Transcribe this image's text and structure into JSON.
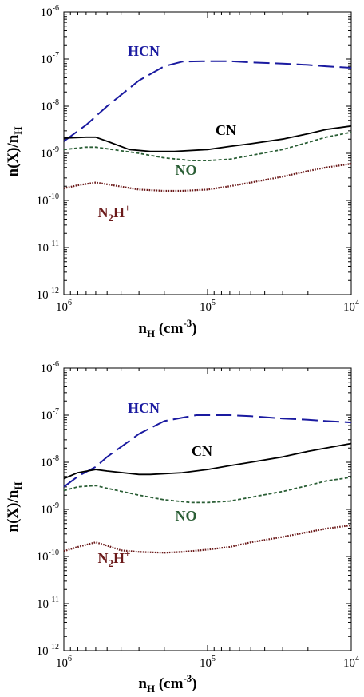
{
  "chart_data": [
    {
      "type": "line",
      "x_scale": "log",
      "y_scale": "log",
      "x_ticks": [
        {
          "value": 1000000,
          "base": "10",
          "exp": "6"
        },
        {
          "value": 100000,
          "base": "10",
          "exp": "5"
        },
        {
          "value": 10000,
          "base": "10",
          "exp": "4"
        }
      ],
      "y_ticks": [
        {
          "value": 1e-06,
          "base": "10",
          "exp": "-6"
        },
        {
          "value": 1e-07,
          "base": "10",
          "exp": "-7"
        },
        {
          "value": 1e-08,
          "base": "10",
          "exp": "-8"
        },
        {
          "value": 1e-09,
          "base": "10",
          "exp": "-9"
        },
        {
          "value": 1e-10,
          "base": "10",
          "exp": "-10"
        },
        {
          "value": 1e-11,
          "base": "10",
          "exp": "-11"
        },
        {
          "value": 1e-12,
          "base": "10",
          "exp": "-12"
        }
      ],
      "xlim": [
        1000000,
        10000
      ],
      "ylim": [
        1e-12,
        1e-06
      ],
      "xlabel": {
        "main": "n",
        "sub": "H",
        "tail": " (cm",
        "sup": "-3",
        "close": ")"
      },
      "ylabel": {
        "main": "n(X)/n",
        "sub": "H"
      },
      "series": [
        {
          "name": "HCN",
          "color": "#1a1aa0",
          "dash": "long-dash",
          "label_parts": {
            "main": "HCN"
          },
          "x": [
            1000000,
            700000,
            500000,
            300000,
            200000,
            150000,
            100000,
            70000,
            50000,
            30000,
            20000,
            15000,
            10000
          ],
          "y": [
            1.8e-09,
            4e-09,
            1e-08,
            3.5e-08,
            7e-08,
            8.8e-08,
            9e-08,
            9e-08,
            8.5e-08,
            8e-08,
            7.5e-08,
            7e-08,
            6.5e-08
          ]
        },
        {
          "name": "CN",
          "color": "#000000",
          "dash": "solid",
          "label_parts": {
            "main": "CN"
          },
          "x": [
            1000000,
            700000,
            600000,
            500000,
            350000,
            250000,
            170000,
            100000,
            70000,
            50000,
            30000,
            20000,
            15000,
            10000
          ],
          "y": [
            2.1e-09,
            2.2e-09,
            2.2e-09,
            1.8e-09,
            1.2e-09,
            1.1e-09,
            1.1e-09,
            1.2e-09,
            1.4e-09,
            1.6e-09,
            2e-09,
            2.6e-09,
            3.2e-09,
            3.8e-09
          ]
        },
        {
          "name": "NO",
          "color": "#2a5e35",
          "dash": "short-dash",
          "label_parts": {
            "main": "NO"
          },
          "x": [
            1000000,
            700000,
            600000,
            500000,
            300000,
            200000,
            130000,
            100000,
            70000,
            50000,
            30000,
            20000,
            15000,
            10000
          ],
          "y": [
            1.2e-09,
            1.35e-09,
            1.35e-09,
            1.25e-09,
            1e-09,
            8e-10,
            7e-10,
            7e-10,
            7.5e-10,
            9e-10,
            1.2e-09,
            1.7e-09,
            2.2e-09,
            2.8e-09
          ]
        },
        {
          "name": "N2H+",
          "color": "#6b1a1a",
          "dash": "dotted",
          "label_parts": {
            "main": "N",
            "sub": "2",
            "main2": "H",
            "sup": "+"
          },
          "x": [
            1000000,
            800000,
            600000,
            500000,
            300000,
            200000,
            150000,
            100000,
            70000,
            50000,
            30000,
            20000,
            15000,
            10000
          ],
          "y": [
            1.8e-10,
            2.1e-10,
            2.4e-10,
            2.2e-10,
            1.7e-10,
            1.6e-10,
            1.6e-10,
            1.7e-10,
            2e-10,
            2.4e-10,
            3.2e-10,
            4.2e-10,
            5e-10,
            6e-10
          ]
        }
      ]
    },
    {
      "type": "line",
      "x_scale": "log",
      "y_scale": "log",
      "x_ticks": [
        {
          "value": 1000000,
          "base": "10",
          "exp": "6"
        },
        {
          "value": 100000,
          "base": "10",
          "exp": "5"
        },
        {
          "value": 10000,
          "base": "10",
          "exp": "4"
        }
      ],
      "y_ticks": [
        {
          "value": 1e-06,
          "base": "10",
          "exp": "-6"
        },
        {
          "value": 1e-07,
          "base": "10",
          "exp": "-7"
        },
        {
          "value": 1e-08,
          "base": "10",
          "exp": "-8"
        },
        {
          "value": 1e-09,
          "base": "10",
          "exp": "-9"
        },
        {
          "value": 1e-10,
          "base": "10",
          "exp": "-10"
        },
        {
          "value": 1e-11,
          "base": "10",
          "exp": "-11"
        },
        {
          "value": 1e-12,
          "base": "10",
          "exp": "-12"
        }
      ],
      "xlim": [
        1000000,
        10000
      ],
      "ylim": [
        1e-12,
        1e-06
      ],
      "xlabel": {
        "main": "n",
        "sub": "H",
        "tail": " (cm",
        "sup": "-3",
        "close": ")"
      },
      "ylabel": {
        "main": "n(X)/n",
        "sub": "H"
      },
      "series": [
        {
          "name": "HCN",
          "color": "#1a1aa0",
          "dash": "long-dash",
          "label_parts": {
            "main": "HCN"
          },
          "x": [
            1000000,
            800000,
            600000,
            500000,
            300000,
            200000,
            120000,
            70000,
            50000,
            30000,
            20000,
            15000,
            10000
          ],
          "y": [
            3e-09,
            5e-09,
            8e-09,
            1.3e-08,
            4e-08,
            7.5e-08,
            1e-07,
            1e-07,
            9.5e-08,
            8.5e-08,
            8e-08,
            7.5e-08,
            7e-08
          ]
        },
        {
          "name": "CN",
          "color": "#000000",
          "dash": "solid",
          "label_parts": {
            "main": "CN"
          },
          "x": [
            1000000,
            800000,
            600000,
            500000,
            300000,
            250000,
            150000,
            100000,
            70000,
            50000,
            30000,
            20000,
            15000,
            10000
          ],
          "y": [
            4.5e-09,
            6e-09,
            7e-09,
            6.5e-09,
            5.5e-09,
            5.5e-09,
            6e-09,
            7e-09,
            8.5e-09,
            1e-08,
            1.3e-08,
            1.7e-08,
            2e-08,
            2.5e-08
          ]
        },
        {
          "name": "NO",
          "color": "#2a5e35",
          "dash": "short-dash",
          "label_parts": {
            "main": "NO"
          },
          "x": [
            1000000,
            800000,
            600000,
            500000,
            300000,
            200000,
            130000,
            100000,
            70000,
            50000,
            30000,
            20000,
            15000,
            10000
          ],
          "y": [
            2.5e-09,
            3e-09,
            3.2e-09,
            2.8e-09,
            2e-09,
            1.6e-09,
            1.4e-09,
            1.4e-09,
            1.5e-09,
            1.8e-09,
            2.4e-09,
            3.2e-09,
            4e-09,
            4.8e-09
          ]
        },
        {
          "name": "N2H+",
          "color": "#6b1a1a",
          "dash": "dotted",
          "label_parts": {
            "main": "N",
            "sub": "2",
            "main2": "H",
            "sup": "+"
          },
          "x": [
            1000000,
            800000,
            600000,
            500000,
            400000,
            300000,
            200000,
            150000,
            100000,
            70000,
            50000,
            30000,
            20000,
            15000,
            10000
          ],
          "y": [
            1.3e-10,
            1.6e-10,
            2e-10,
            1.7e-10,
            1.35e-10,
            1.25e-10,
            1.2e-10,
            1.25e-10,
            1.4e-10,
            1.6e-10,
            2e-10,
            2.6e-10,
            3.3e-10,
            3.9e-10,
            4.6e-10
          ]
        }
      ]
    }
  ]
}
